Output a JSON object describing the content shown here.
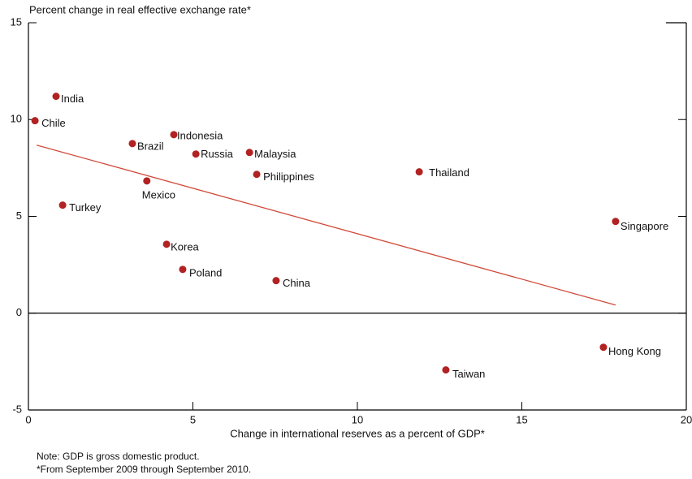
{
  "chart_data": {
    "type": "scatter",
    "y_axis_label": "Percent change in real effective exchange rate*",
    "x_axis_label": "Change in international reserves as a percent of GDP*",
    "notes": [
      "Note: GDP is gross domestic product.",
      "*From September 2009 through September 2010."
    ],
    "color": "#b22222",
    "labels": [
      "India",
      "Chile",
      "Brazil",
      "Indonesia",
      "Russia",
      "Malaysia",
      "Philippines",
      "Thailand",
      "Mexico",
      "Turkey",
      "Singapore",
      "Korea",
      "Poland",
      "China",
      "Hong Kong",
      "Taiwan"
    ],
    "x": [
      0.84,
      0.2,
      3.16,
      4.42,
      5.09,
      6.72,
      6.94,
      11.88,
      3.6,
      1.04,
      17.85,
      4.2,
      4.69,
      7.53,
      17.48,
      12.69
    ],
    "y": [
      11.2,
      9.94,
      8.76,
      9.22,
      8.22,
      8.3,
      7.17,
      7.3,
      6.83,
      5.58,
      4.74,
      3.56,
      2.26,
      1.68,
      -1.76,
      -2.93
    ],
    "trend_line": {
      "x": [
        0.25,
        17.85
      ],
      "y": [
        8.68,
        0.42
      ],
      "color": "#d04a3a"
    },
    "xlim": [
      0,
      20
    ],
    "xticks": [
      0,
      5,
      10,
      15,
      20
    ],
    "ylim": [
      -5,
      15
    ],
    "yticks": [
      -5,
      0,
      5,
      10,
      15
    ]
  }
}
